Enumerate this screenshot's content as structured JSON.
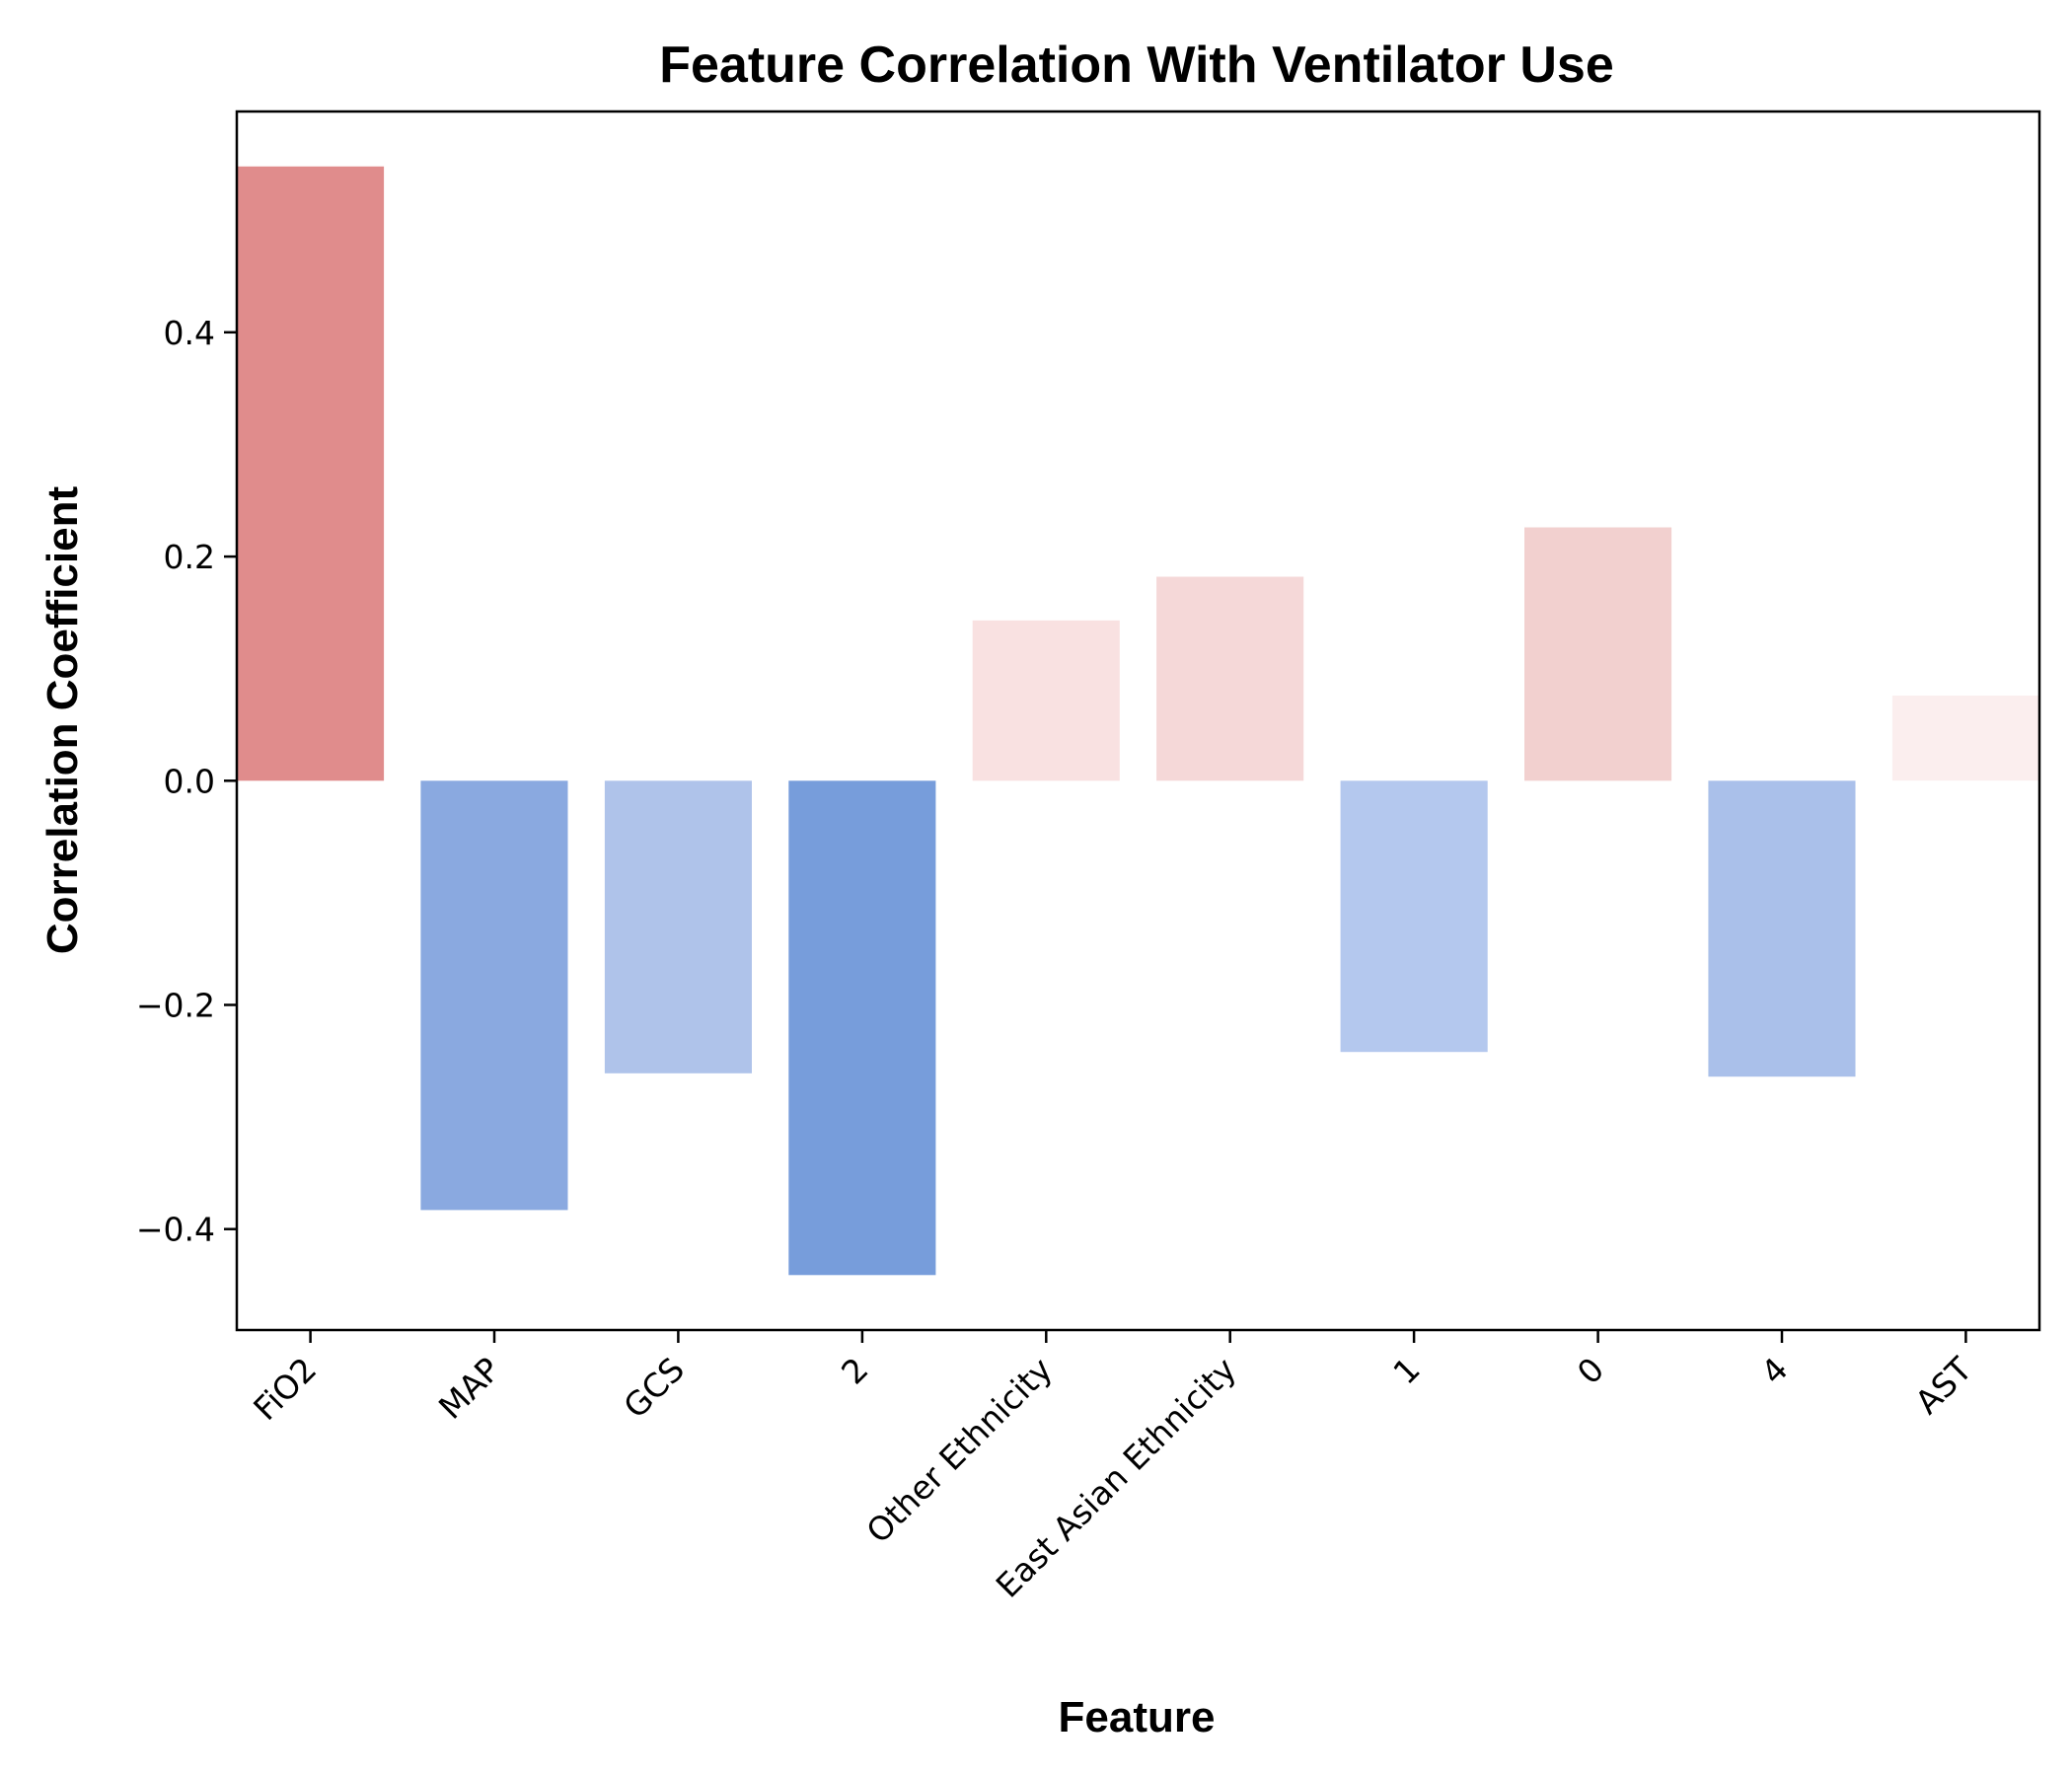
{
  "chart_data": {
    "type": "bar",
    "title": "Feature Correlation With Ventilator Use",
    "xlabel": "Feature",
    "ylabel": "Correlation Coefficient",
    "categories": [
      "FiO2",
      "MAP",
      "GCS",
      "2",
      "Other Ethnicity",
      "East Asian Ethnicity",
      "1",
      "0",
      "4",
      "AST"
    ],
    "values": [
      0.548,
      -0.383,
      -0.261,
      -0.441,
      0.143,
      0.182,
      -0.242,
      0.226,
      -0.264,
      0.076
    ],
    "colors": [
      "#e08c8c",
      "#8aa9e0",
      "#afc3ea",
      "#779ddb",
      "#f9e1e1",
      "#f5d8d8",
      "#b4c8ee",
      "#f2d0cf",
      "#aac0ea",
      "#fbeeee"
    ],
    "ylim": [
      -0.49,
      0.597
    ],
    "yticks": [
      -0.4,
      -0.2,
      0.0,
      0.2,
      0.4
    ],
    "ytick_labels": [
      "−0.4",
      "−0.2",
      "0.0",
      "0.2",
      "0.4"
    ],
    "grid": false,
    "legend": "none"
  }
}
